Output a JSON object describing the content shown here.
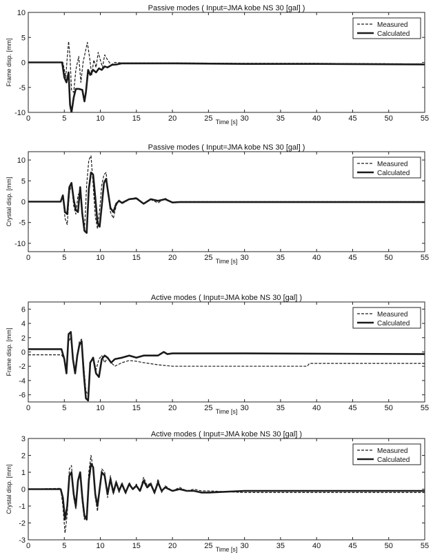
{
  "chart_data": [
    {
      "type": "line",
      "title": "Passive modes ( Input=JMA kobe NS 30 [gal] )",
      "xlabel": "Time [s]",
      "ylabel": "Frame disp. [mm]",
      "xlim": [
        0,
        55
      ],
      "ylim": [
        -10,
        10
      ],
      "xticks": [
        0,
        5,
        10,
        15,
        20,
        25,
        30,
        35,
        40,
        45,
        50,
        55
      ],
      "yticks": [
        -10,
        -5,
        0,
        5,
        10
      ],
      "legend": "top-right",
      "grid": false,
      "series": [
        {
          "name": "Measured",
          "style": "dashed",
          "x": [
            0,
            4.8,
            5.0,
            5.2,
            5.4,
            5.6,
            5.8,
            6.0,
            6.3,
            6.6,
            7.0,
            7.3,
            7.6,
            7.9,
            8.2,
            8.5,
            8.8,
            9.1,
            9.4,
            9.7,
            10.0,
            10.3,
            10.6,
            11.0,
            11.5,
            12.0,
            13.0,
            20,
            30,
            40,
            55
          ],
          "y": [
            0,
            0,
            -1.5,
            -3.0,
            1.0,
            4.2,
            1.0,
            -5.5,
            -6.0,
            -1.5,
            1.2,
            -4.0,
            0.0,
            2.0,
            4.0,
            1.0,
            -2.5,
            0.5,
            -1.0,
            2.0,
            0.5,
            -1.0,
            1.5,
            0.5,
            -0.5,
            0.0,
            -0.1,
            -0.1,
            -0.2,
            -0.2,
            -0.3
          ]
        },
        {
          "name": "Calculated",
          "style": "solid",
          "x": [
            0,
            4.7,
            5.0,
            5.3,
            5.6,
            5.8,
            6.0,
            6.3,
            6.6,
            7.0,
            7.5,
            7.8,
            8.0,
            8.3,
            8.6,
            9.0,
            9.4,
            9.8,
            10.2,
            10.6,
            11.0,
            11.6,
            12.3,
            13.0,
            20,
            30,
            40,
            55
          ],
          "y": [
            0,
            0,
            -3.0,
            -4.0,
            -2.0,
            -8.5,
            -10.0,
            -7.0,
            -5.3,
            -5.3,
            -5.5,
            -7.8,
            -6.0,
            -1.5,
            -2.5,
            -1.5,
            -2.0,
            -1.2,
            -1.5,
            -0.8,
            -1.0,
            -0.5,
            -0.4,
            -0.2,
            -0.2,
            -0.3,
            -0.3,
            -0.4
          ]
        }
      ]
    },
    {
      "type": "line",
      "title": "Passive modes ( Input=JMA kobe NS 30 [gal] )",
      "xlabel": "Time [s]",
      "ylabel": "Crystal disp. [mm]",
      "xlim": [
        0,
        55
      ],
      "ylim": [
        -12,
        12
      ],
      "xticks": [
        0,
        5,
        10,
        15,
        20,
        25,
        30,
        35,
        40,
        45,
        50,
        55
      ],
      "yticks": [
        -10,
        -5,
        0,
        5,
        10
      ],
      "legend": "top-right",
      "grid": false,
      "series": [
        {
          "name": "Measured",
          "style": "dashed",
          "x": [
            0,
            4.5,
            4.8,
            5.1,
            5.4,
            5.7,
            6.0,
            6.3,
            6.6,
            6.9,
            7.2,
            7.5,
            7.8,
            8.1,
            8.4,
            8.7,
            9.0,
            9.3,
            9.6,
            9.9,
            10.2,
            10.5,
            10.8,
            11.1,
            11.4,
            11.8,
            12.2,
            12.6,
            13.0,
            14.0,
            15.0,
            16.0,
            17.0,
            18.0,
            19.0,
            20.0,
            21.0,
            30,
            55
          ],
          "y": [
            0,
            0,
            1.5,
            -4.0,
            -5.5,
            2.0,
            4.5,
            -1.0,
            -3.0,
            1.5,
            2.5,
            -3.5,
            -7.0,
            4.0,
            10.0,
            11.0,
            4.0,
            -3.5,
            -6.5,
            -2.0,
            4.0,
            6.5,
            7.0,
            2.0,
            -2.5,
            -4.0,
            -1.0,
            0.5,
            -0.5,
            0.5,
            1.0,
            -0.5,
            0.5,
            -0.3,
            0.8,
            -0.2,
            0,
            0,
            0
          ]
        },
        {
          "name": "Calculated",
          "style": "solid",
          "x": [
            0,
            4.5,
            4.8,
            5.1,
            5.4,
            5.7,
            6.0,
            6.3,
            6.6,
            6.9,
            7.2,
            7.5,
            7.8,
            8.1,
            8.4,
            8.7,
            9.0,
            9.3,
            9.6,
            9.9,
            10.2,
            10.5,
            10.8,
            11.1,
            11.4,
            11.8,
            12.2,
            12.6,
            13.0,
            14.0,
            15.0,
            16.0,
            17.0,
            18.0,
            19.0,
            20.0,
            21.0,
            30,
            55
          ],
          "y": [
            0,
            0,
            1.5,
            -2.5,
            -3.0,
            3.5,
            4.5,
            0.5,
            -2.0,
            -2.5,
            3.5,
            -3.0,
            -7.0,
            -7.5,
            3.0,
            7.0,
            6.5,
            1.0,
            -5.0,
            -6.0,
            -1.0,
            4.5,
            5.5,
            2.0,
            -1.5,
            -2.5,
            -0.5,
            0.2,
            -0.3,
            0.6,
            0.8,
            -0.5,
            0.6,
            0.2,
            0.6,
            -0.2,
            -0.1,
            -0.1,
            -0.1
          ]
        }
      ]
    },
    {
      "type": "line",
      "title": "Active modes ( Input=JMA kobe NS 30 [gal] )",
      "xlabel": "Time [s]",
      "ylabel": "Frame disp. [mm]",
      "xlim": [
        0,
        55
      ],
      "ylim": [
        -7,
        7
      ],
      "xticks": [
        0,
        5,
        10,
        15,
        20,
        25,
        30,
        35,
        40,
        45,
        50,
        55
      ],
      "yticks": [
        -6,
        -4,
        -2,
        0,
        2,
        4,
        6
      ],
      "legend": "top-right",
      "grid": false,
      "series": [
        {
          "name": "Measured",
          "style": "dashed",
          "x": [
            0,
            4.6,
            5.0,
            5.3,
            5.6,
            5.9,
            6.2,
            6.5,
            6.8,
            7.1,
            7.4,
            7.7,
            8.0,
            8.3,
            8.6,
            9.0,
            9.4,
            9.8,
            10.2,
            10.6,
            11.0,
            11.5,
            12.0,
            13.0,
            14.0,
            15.0,
            16.0,
            18.0,
            20.0,
            25.0,
            30.0,
            35.0,
            38.7,
            39.0,
            45.0,
            55.0
          ],
          "y": [
            -0.4,
            -0.4,
            -1.0,
            -2.5,
            1.5,
            2.0,
            -1.0,
            -2.5,
            -0.5,
            1.5,
            1.8,
            -2.0,
            -5.5,
            -6.0,
            -1.5,
            -0.8,
            -2.5,
            -1.0,
            -0.5,
            -1.5,
            -0.8,
            -1.5,
            -2.0,
            -1.5,
            -1.2,
            -1.3,
            -1.5,
            -1.8,
            -2.0,
            -2.0,
            -2.0,
            -2.0,
            -2.0,
            -1.6,
            -1.6,
            -1.6
          ]
        },
        {
          "name": "Calculated",
          "style": "solid",
          "x": [
            0,
            4.6,
            5.0,
            5.3,
            5.6,
            5.9,
            6.2,
            6.5,
            6.8,
            7.1,
            7.4,
            7.7,
            8.0,
            8.3,
            8.6,
            9.0,
            9.4,
            9.8,
            10.2,
            10.6,
            11.0,
            11.5,
            12.0,
            13.0,
            14.0,
            15.0,
            16.0,
            18.0,
            18.8,
            19.3,
            20.0,
            30.0,
            55.0
          ],
          "y": [
            0.4,
            0.4,
            -1.0,
            -3.0,
            2.5,
            2.8,
            -1.0,
            -3.0,
            -0.5,
            1.0,
            1.5,
            -3.0,
            -6.5,
            -6.8,
            -1.5,
            -0.8,
            -3.0,
            -3.5,
            -1.0,
            -0.5,
            -0.8,
            -1.5,
            -1.0,
            -0.8,
            -0.5,
            -0.8,
            -0.5,
            -0.5,
            0.0,
            -0.3,
            -0.2,
            -0.2,
            -0.3
          ]
        }
      ]
    },
    {
      "type": "line",
      "title": "Active modes ( Input=JMA kobe NS 30 [gal] )",
      "xlabel": "Time [s]",
      "ylabel": "Crystal disp. [mm]",
      "xlim": [
        0,
        55
      ],
      "ylim": [
        -3,
        3
      ],
      "xticks": [
        0,
        5,
        10,
        15,
        20,
        25,
        30,
        35,
        40,
        45,
        50,
        55
      ],
      "yticks": [
        -3,
        -2,
        -1,
        0,
        1,
        2,
        3
      ],
      "legend": "top-right",
      "grid": false,
      "series": [
        {
          "name": "Measured",
          "style": "dashed",
          "x": [
            0,
            4.5,
            4.8,
            5.1,
            5.4,
            5.7,
            6.0,
            6.3,
            6.6,
            6.9,
            7.2,
            7.5,
            7.8,
            8.1,
            8.4,
            8.7,
            9.0,
            9.3,
            9.6,
            9.9,
            10.2,
            10.6,
            11.0,
            11.4,
            11.8,
            12.2,
            12.6,
            13.0,
            13.5,
            14.0,
            14.5,
            15.0,
            15.5,
            16.0,
            16.5,
            17.0,
            17.5,
            18.0,
            18.5,
            19.0,
            20.0,
            21.0,
            22.0,
            23.0,
            24.0,
            25.0,
            30.0,
            40.0,
            55.0
          ],
          "y": [
            0,
            0.05,
            -1.0,
            -2.6,
            -1.5,
            1.2,
            1.4,
            -0.5,
            -1.2,
            0.5,
            1.0,
            -0.8,
            -1.8,
            -1.5,
            1.0,
            2.0,
            1.2,
            -0.5,
            -1.3,
            0.2,
            1.2,
            1.0,
            -0.5,
            0.8,
            -0.3,
            0.5,
            -0.2,
            0.4,
            -0.3,
            0.4,
            0.0,
            0.3,
            -0.1,
            0.7,
            0.2,
            0.4,
            -0.3,
            0.6,
            -0.2,
            0.2,
            -0.1,
            0.1,
            -0.1,
            0.0,
            -0.1,
            -0.1,
            -0.2,
            -0.2,
            -0.2
          ]
        },
        {
          "name": "Calculated",
          "style": "solid",
          "x": [
            0,
            4.5,
            4.8,
            5.1,
            5.4,
            5.7,
            6.0,
            6.3,
            6.6,
            6.9,
            7.2,
            7.5,
            7.8,
            8.1,
            8.4,
            8.7,
            9.0,
            9.3,
            9.6,
            9.9,
            10.2,
            10.6,
            11.0,
            11.4,
            11.8,
            12.2,
            12.6,
            13.0,
            13.5,
            14.0,
            14.5,
            15.0,
            15.5,
            16.0,
            16.5,
            17.0,
            17.5,
            18.0,
            18.5,
            19.0,
            20.0,
            21.0,
            22.0,
            23.0,
            24.0,
            25.0,
            30.0,
            40.0,
            55.0
          ],
          "y": [
            0,
            0.0,
            -0.5,
            -1.8,
            -1.0,
            0.8,
            1.0,
            -0.3,
            -1.0,
            0.5,
            1.0,
            -0.5,
            -1.6,
            -1.8,
            0.5,
            1.5,
            1.3,
            -0.3,
            -1.0,
            0.0,
            1.0,
            0.8,
            -0.3,
            0.6,
            -0.2,
            0.4,
            -0.1,
            0.3,
            -0.2,
            0.3,
            0.0,
            0.2,
            -0.1,
            0.5,
            0.1,
            0.3,
            -0.2,
            0.4,
            -0.1,
            0.1,
            -0.1,
            0.0,
            -0.1,
            -0.1,
            -0.2,
            -0.2,
            -0.1,
            -0.1,
            -0.1
          ]
        }
      ]
    }
  ]
}
